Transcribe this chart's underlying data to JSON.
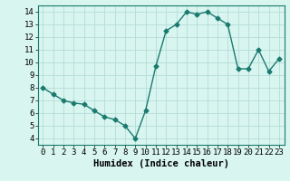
{
  "x": [
    0,
    1,
    2,
    3,
    4,
    5,
    6,
    7,
    8,
    9,
    10,
    11,
    12,
    13,
    14,
    15,
    16,
    17,
    18,
    19,
    20,
    21,
    22,
    23
  ],
  "y": [
    8,
    7.5,
    7,
    6.8,
    6.7,
    6.2,
    5.7,
    5.5,
    5,
    4,
    6.2,
    9.7,
    12.5,
    13,
    14,
    13.8,
    14,
    13.5,
    13,
    9.5,
    9.5,
    11,
    9.3,
    10.3
  ],
  "line_color": "#1a7a6e",
  "marker": "D",
  "marker_size": 2.5,
  "bg_color": "#d8f5f0",
  "grid_color": "#b5ddd8",
  "xlabel": "Humidex (Indice chaleur)",
  "xlim": [
    -0.5,
    23.5
  ],
  "ylim": [
    3.5,
    14.5
  ],
  "yticks": [
    4,
    5,
    6,
    7,
    8,
    9,
    10,
    11,
    12,
    13,
    14
  ],
  "xticks": [
    0,
    1,
    2,
    3,
    4,
    5,
    6,
    7,
    8,
    9,
    10,
    11,
    12,
    13,
    14,
    15,
    16,
    17,
    18,
    19,
    20,
    21,
    22,
    23
  ],
  "tick_label_fontsize": 6.5,
  "xlabel_fontsize": 7.5,
  "line_width": 1.0
}
